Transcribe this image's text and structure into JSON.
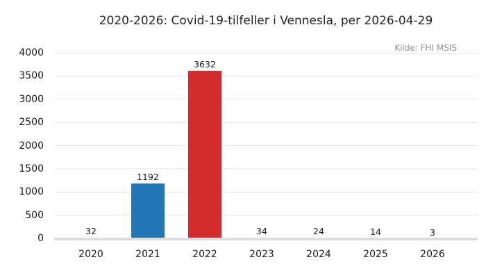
{
  "chart_data": {
    "type": "bar",
    "title": "2020-2026: Covid-19-tilfeller i Vennesla, per 2026-04-29",
    "source_annotation": "Kilde: FHI MSIS",
    "categories": [
      "2020",
      "2021",
      "2022",
      "2023",
      "2024",
      "2025",
      "2026"
    ],
    "values": [
      32,
      1192,
      3632,
      34,
      24,
      14,
      3
    ],
    "bar_colors": [
      "#2178b5",
      "#2178b5",
      "#d42c2c",
      "#2178b5",
      "#2178b5",
      "#2178b5",
      "#2178b5"
    ],
    "value_labels_shown": true,
    "xlabel": "",
    "ylabel": "",
    "ylim": [
      0,
      4000
    ],
    "yticks": [
      0,
      500,
      1000,
      1500,
      2000,
      2500,
      3000,
      3500,
      4000
    ],
    "grid": "horizontal",
    "legend": "none",
    "colors": {
      "background": "#ffffff",
      "gridline": "#e7e7e7",
      "axis_line": "#dedede",
      "tick_text": "#1a1a1a",
      "title_text": "#262626",
      "annotation_text": "#8f8f8f"
    }
  }
}
